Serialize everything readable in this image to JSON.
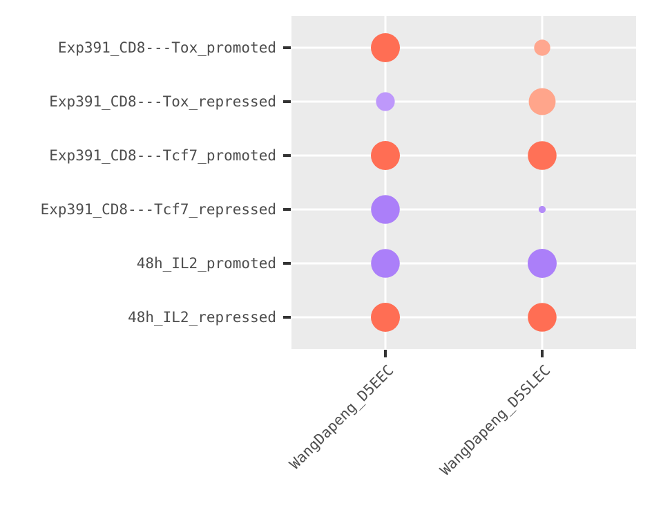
{
  "chart_data": {
    "type": "scatter",
    "subtype": "dot-plot",
    "title": "",
    "xlabel": "",
    "ylabel": "",
    "x_categories": [
      "WangDapeng_D5EEC",
      "WangDapeng_D5SLEC"
    ],
    "y_categories": [
      "Exp391_CD8---Tox_promoted",
      "Exp391_CD8---Tox_repressed",
      "Exp391_CD8---Tcf7_promoted",
      "Exp391_CD8---Tcf7_repressed",
      "48h_IL2_promoted",
      "48h_IL2_repressed"
    ],
    "points": [
      {
        "x": "WangDapeng_D5EEC",
        "y": "Exp391_CD8---Tox_promoted",
        "size": 1.0,
        "color": "#ff6e54"
      },
      {
        "x": "WangDapeng_D5SLEC",
        "y": "Exp391_CD8---Tox_promoted",
        "size": 0.31,
        "color": "#ffa78f"
      },
      {
        "x": "WangDapeng_D5EEC",
        "y": "Exp391_CD8---Tox_repressed",
        "size": 0.42,
        "color": "#be98fb"
      },
      {
        "x": "WangDapeng_D5SLEC",
        "y": "Exp391_CD8---Tox_repressed",
        "size": 0.86,
        "color": "#ffa58b"
      },
      {
        "x": "WangDapeng_D5EEC",
        "y": "Exp391_CD8---Tcf7_promoted",
        "size": 1.0,
        "color": "#ff6e54"
      },
      {
        "x": "WangDapeng_D5SLEC",
        "y": "Exp391_CD8---Tcf7_promoted",
        "size": 0.98,
        "color": "#ff7157"
      },
      {
        "x": "WangDapeng_D5EEC",
        "y": "Exp391_CD8---Tcf7_repressed",
        "size": 0.98,
        "color": "#ab7ff9"
      },
      {
        "x": "WangDapeng_D5SLEC",
        "y": "Exp391_CD8---Tcf7_repressed",
        "size": 0.06,
        "color": "#b48cf8"
      },
      {
        "x": "WangDapeng_D5EEC",
        "y": "48h_IL2_promoted",
        "size": 0.98,
        "color": "#ab7ff9"
      },
      {
        "x": "WangDapeng_D5SLEC",
        "y": "48h_IL2_promoted",
        "size": 1.0,
        "color": "#ab7ff9"
      },
      {
        "x": "WangDapeng_D5EEC",
        "y": "48h_IL2_repressed",
        "size": 1.0,
        "color": "#ff6e54"
      },
      {
        "x": "WangDapeng_D5SLEC",
        "y": "48h_IL2_repressed",
        "size": 0.98,
        "color": "#ff6e54"
      }
    ],
    "grid": true,
    "legend": "none",
    "panel_background": "#ebebeb",
    "grid_color": "#ffffff"
  }
}
